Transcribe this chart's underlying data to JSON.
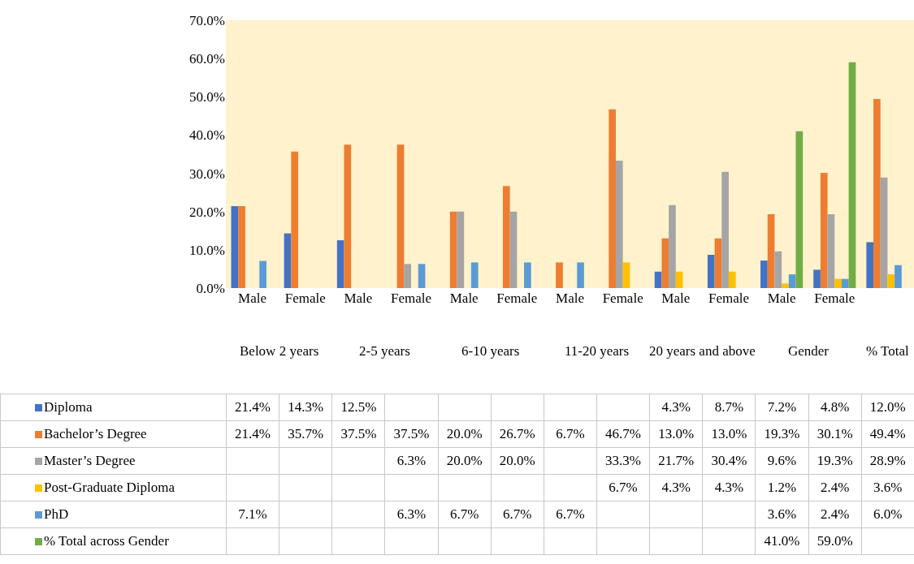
{
  "chart_data": {
    "type": "bar",
    "categories": [
      "Male",
      "Female",
      "Male",
      "Female",
      "Male",
      "Female",
      "Male",
      "Female",
      "Male",
      "Female",
      "Male",
      "Female",
      null
    ],
    "annotations": [
      "Below 2 years",
      "2-5 years",
      "6-10 years",
      "11-20 years",
      "20 years and above",
      "Gender",
      "% Total"
    ],
    "series": [
      {
        "name": "Diploma",
        "color": "#4472c4",
        "values": [
          21.4,
          14.3,
          12.5,
          null,
          null,
          null,
          null,
          null,
          4.3,
          8.7,
          7.2,
          4.8,
          12.0
        ],
        "value_labels": [
          "21.4%",
          "14.3%",
          "12.5%",
          null,
          null,
          null,
          null,
          null,
          "4.3%",
          "8.7%",
          "7.2%",
          "4.8%",
          "12.0%"
        ]
      },
      {
        "name": "Bachelor’s Degree",
        "color": "#ed7d31",
        "values": [
          21.4,
          35.7,
          37.5,
          37.5,
          20.0,
          26.7,
          6.7,
          46.7,
          13.0,
          13.0,
          19.3,
          30.1,
          49.4
        ],
        "value_labels": [
          "21.4%",
          "35.7%",
          "37.5%",
          "37.5%",
          "20.0%",
          "26.7%",
          "6.7%",
          "46.7%",
          "13.0%",
          "13.0%",
          "19.3%",
          "30.1%",
          "49.4%"
        ]
      },
      {
        "name": "Master’s Degree",
        "color": "#a5a5a5",
        "values": [
          null,
          null,
          null,
          6.3,
          20.0,
          20.0,
          null,
          33.3,
          21.7,
          30.4,
          9.6,
          19.3,
          28.9
        ],
        "value_labels": [
          null,
          null,
          null,
          "6.3%",
          "20.0%",
          "20.0%",
          null,
          "33.3%",
          "21.7%",
          "30.4%",
          "9.6%",
          "19.3%",
          "28.9%"
        ]
      },
      {
        "name": "Post-Graduate Diploma",
        "color": "#ffc000",
        "values": [
          null,
          null,
          null,
          null,
          null,
          null,
          null,
          6.7,
          4.3,
          4.3,
          1.2,
          2.4,
          3.6
        ],
        "value_labels": [
          null,
          null,
          null,
          null,
          null,
          null,
          null,
          "6.7%",
          "4.3%",
          "4.3%",
          "1.2%",
          "2.4%",
          "3.6%"
        ]
      },
      {
        "name": "PhD",
        "color": "#5b9bd5",
        "values": [
          7.1,
          null,
          null,
          6.3,
          6.7,
          6.7,
          6.7,
          null,
          null,
          null,
          3.6,
          2.4,
          6.0
        ],
        "value_labels": [
          "7.1%",
          null,
          null,
          "6.3%",
          "6.7%",
          "6.7%",
          "6.7%",
          null,
          null,
          null,
          "3.6%",
          "2.4%",
          "6.0%"
        ]
      },
      {
        "name": "% Total across Gender",
        "color": "#70ad47",
        "values": [
          null,
          null,
          null,
          null,
          null,
          null,
          null,
          null,
          null,
          null,
          41.0,
          59.0,
          null
        ],
        "value_labels": [
          null,
          null,
          null,
          null,
          null,
          null,
          null,
          null,
          null,
          null,
          "41.0%",
          "59.0%",
          null
        ]
      }
    ],
    "ylim": [
      0,
      70
    ],
    "yticks": [
      {
        "value": 0,
        "label": "0.0%"
      },
      {
        "value": 10,
        "label": "10.0%"
      },
      {
        "value": 20,
        "label": "20.0%"
      },
      {
        "value": 30,
        "label": "30.0%"
      },
      {
        "value": 40,
        "label": "40.0%"
      },
      {
        "value": 50,
        "label": "50.0%"
      },
      {
        "value": 60,
        "label": "60.0%"
      },
      {
        "value": 70,
        "label": "70.0%"
      }
    ],
    "grid": false,
    "legend": "bottom"
  }
}
